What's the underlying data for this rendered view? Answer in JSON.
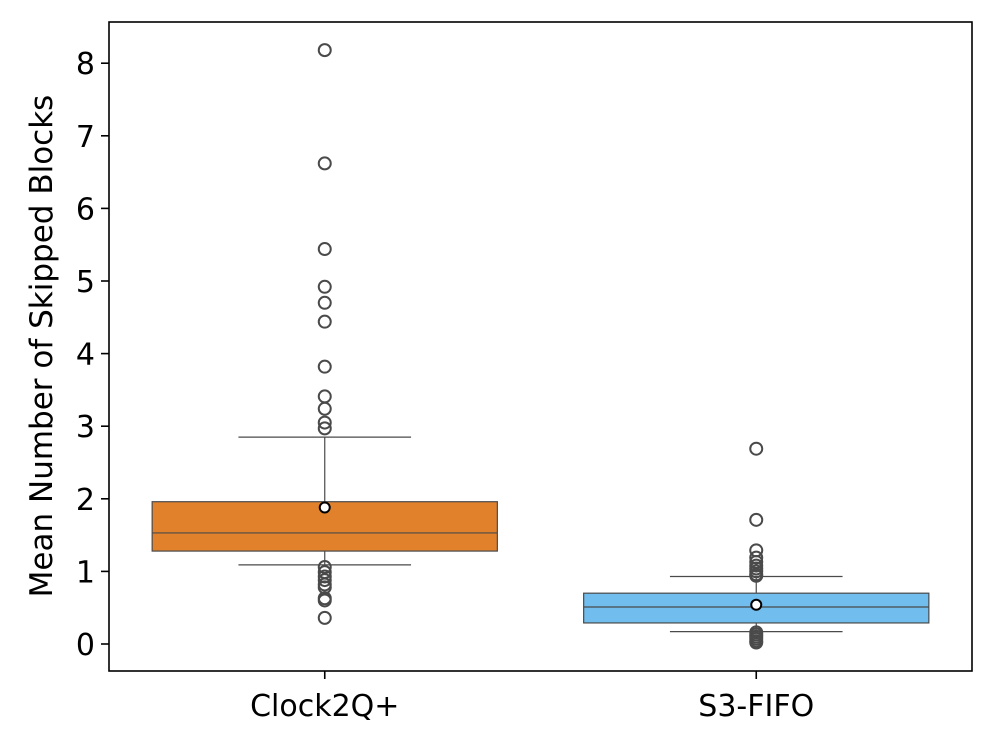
{
  "chart_data": {
    "type": "box",
    "ylabel": "Mean Number of Skipped Blocks",
    "xlabel": "",
    "ylim": [
      -0.38,
      8.6
    ],
    "yticks": [
      0,
      1,
      2,
      3,
      4,
      5,
      6,
      7,
      8
    ],
    "ytick_labels": [
      "0",
      "1",
      "2",
      "3",
      "4",
      "5",
      "6",
      "7",
      "8"
    ],
    "grid": false,
    "categories": [
      "Clock2Q+",
      "S3-FIFO"
    ],
    "boxes": [
      {
        "name": "Clock2Q+",
        "color": "#e1812c",
        "q1": 1.28,
        "median": 1.53,
        "q3": 1.96,
        "whisker_low": 1.09,
        "whisker_high": 2.85,
        "mean": 1.88,
        "outliers": [
          8.18,
          6.62,
          5.44,
          4.92,
          4.7,
          4.44,
          3.82,
          3.41,
          3.24,
          3.05,
          2.97,
          1.06,
          0.99,
          0.93,
          0.88,
          0.82,
          0.78,
          0.63,
          0.6,
          0.36
        ]
      },
      {
        "name": "S3-FIFO",
        "color": "#71bdee",
        "q1": 0.29,
        "median": 0.51,
        "q3": 0.7,
        "whisker_low": 0.17,
        "whisker_high": 0.93,
        "mean": 0.54,
        "outliers": [
          2.69,
          1.71,
          1.29,
          1.19,
          1.13,
          1.08,
          1.04,
          1.0,
          0.96,
          0.94,
          0.16,
          0.13,
          0.1,
          0.07,
          0.04,
          0.02
        ]
      }
    ],
    "mean_marker": "white-filled circle",
    "outlier_marker": "hollow circle"
  }
}
